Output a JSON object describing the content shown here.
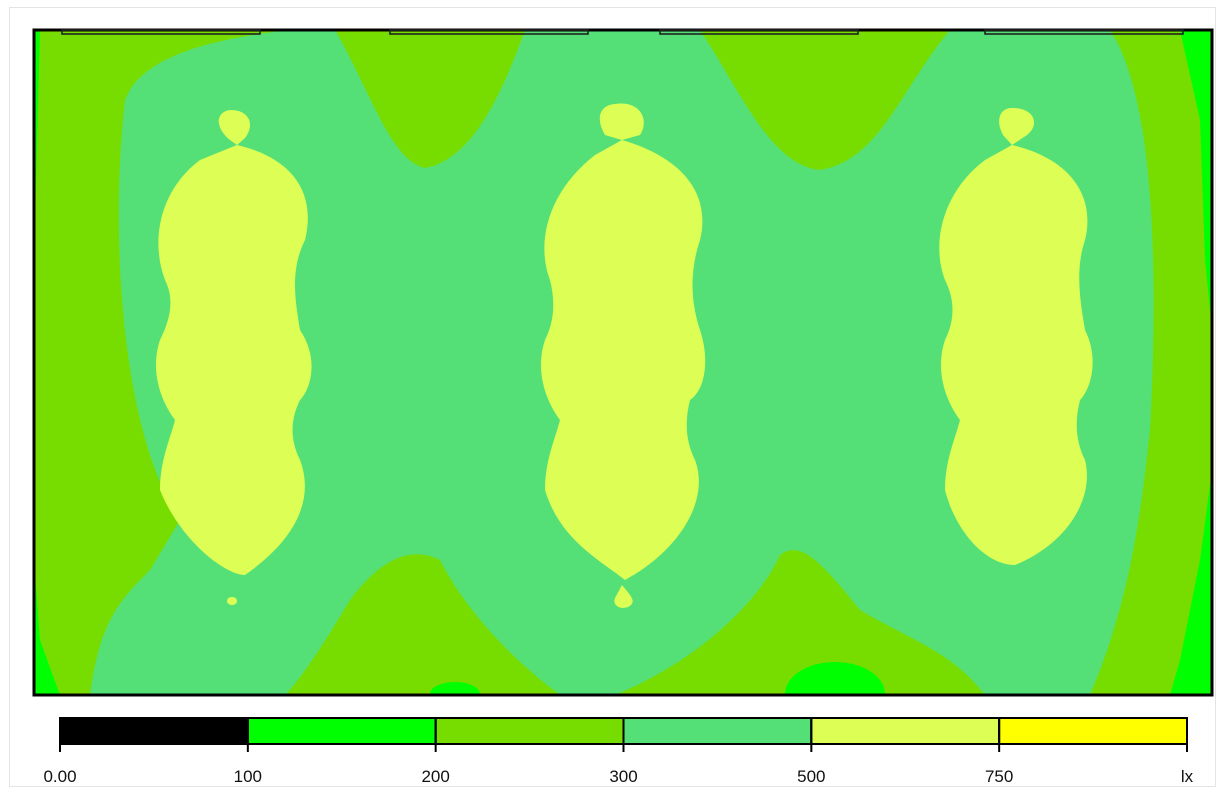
{
  "chart_data": {
    "type": "heatmap",
    "title": "",
    "unit": "lx",
    "legend": {
      "placement": "bottom",
      "tick_labels": [
        "0.00",
        "100",
        "200",
        "300",
        "500",
        "750"
      ],
      "bands": [
        {
          "from": 0,
          "to": 100,
          "color": "#000000"
        },
        {
          "from": 100,
          "to": 200,
          "color": "#00ff00"
        },
        {
          "from": 200,
          "to": 300,
          "color": "#77dd00"
        },
        {
          "from": 300,
          "to": 500,
          "color": "#55e077"
        },
        {
          "from": 500,
          "to": 750,
          "color": "#ddff55"
        },
        {
          "from": 750,
          "to": null,
          "color": "#ffff00"
        }
      ]
    },
    "luminaires": 4,
    "grid": false
  },
  "colors": {
    "level_100": "#00ff00",
    "level_200": "#77dd00",
    "level_300": "#55e077",
    "level_500": "#ddff55",
    "border": "#000000"
  }
}
